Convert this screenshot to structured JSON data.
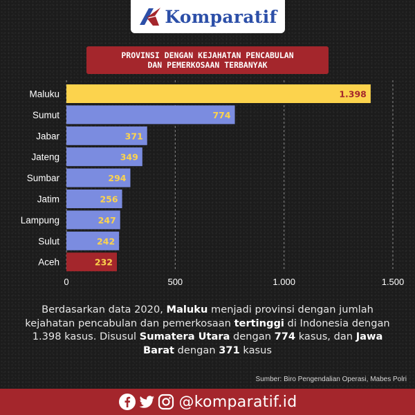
{
  "brand": {
    "name": "Komparatif"
  },
  "title": {
    "line1": "PROVINSI DENGAN KEJAHATAN PENCABULAN",
    "line2": "DAN PEMERKOSAAN TERBANYAK"
  },
  "chart_data": {
    "type": "bar",
    "orientation": "horizontal",
    "categories": [
      "Maluku",
      "Sumut",
      "Jabar",
      "Jateng",
      "Sumbar",
      "Jatim",
      "Lampung",
      "Sulut",
      "Aceh"
    ],
    "values": [
      1398,
      774,
      371,
      349,
      294,
      256,
      247,
      242,
      232
    ],
    "value_labels": [
      "1.398",
      "774",
      "371",
      "349",
      "294",
      "256",
      "247",
      "242",
      "232"
    ],
    "bar_colors": [
      "#fcd34d",
      "#7b8ce0",
      "#7b8ce0",
      "#7b8ce0",
      "#7b8ce0",
      "#7b8ce0",
      "#7b8ce0",
      "#7b8ce0",
      "#a4262c"
    ],
    "label_colors": [
      "#a4262c",
      "#fcd34d",
      "#fcd34d",
      "#fcd34d",
      "#fcd34d",
      "#fcd34d",
      "#fcd34d",
      "#fcd34d",
      "#fcd34d"
    ],
    "xlim": [
      0,
      1500
    ],
    "xticks": [
      0,
      500,
      1000,
      1500
    ],
    "xtick_labels": [
      "0",
      "500",
      "1.000",
      "1.500"
    ],
    "grid": "vertical dashed"
  },
  "caption": {
    "p1": "Berdasarkan data 2020, ",
    "b1": "Maluku",
    "p2": " menjadi provinsi dengan jumlah kejahatan pencabulan dan pemerkosaan ",
    "b2": "tertinggi",
    "p3": " di Indonesia dengan 1.398 kasus. Disusul ",
    "b3": "Sumatera Utara",
    "p4": " dengan ",
    "b4": "774",
    "p5": " kasus, dan ",
    "b5": "Jawa Barat",
    "p6": " dengan ",
    "b6": "371",
    "p7": " kasus"
  },
  "source": "Sumber: Biro Pengendalian Operasi, Mabes Polri",
  "footer": {
    "handle": "@komparatif.id",
    "icons": [
      "facebook-icon",
      "twitter-icon",
      "instagram-icon"
    ]
  },
  "colors": {
    "brand_blue": "#2c4fa8",
    "brand_red": "#a4262c",
    "highlight_yellow": "#fcd34d",
    "bar_blue": "#7b8ce0"
  }
}
